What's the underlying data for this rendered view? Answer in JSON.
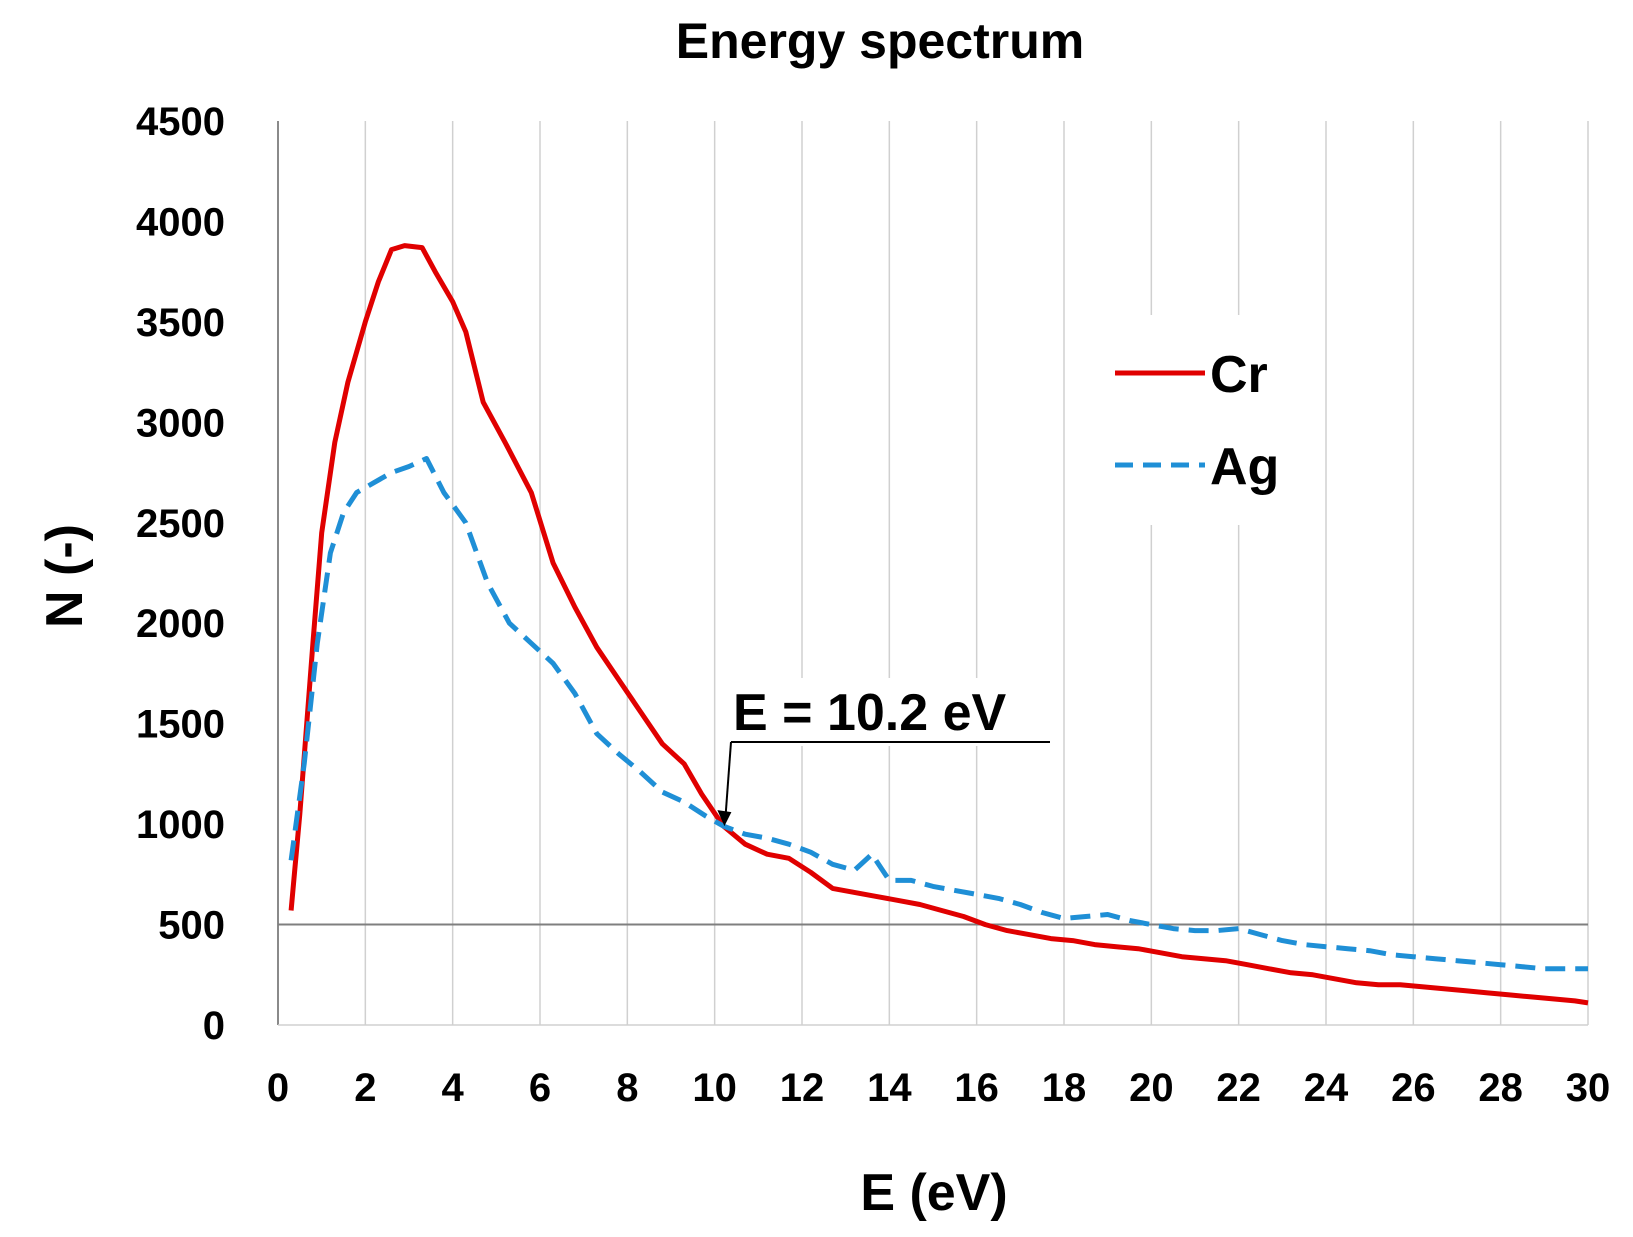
{
  "chart_data": {
    "type": "line",
    "title": "Energy spectrum",
    "xlabel": "E (eV)",
    "ylabel": "N (-)",
    "xlim": [
      0,
      30
    ],
    "ylim": [
      0,
      4500
    ],
    "x_ticks": [
      "0",
      "2",
      "4",
      "6",
      "8",
      "10",
      "12",
      "14",
      "16",
      "18",
      "20",
      "22",
      "24",
      "26",
      "28",
      "30"
    ],
    "y_ticks": [
      "0",
      "500",
      "1000",
      "1500",
      "2000",
      "2500",
      "3000",
      "3500",
      "4000",
      "4500"
    ],
    "grid": "vertical",
    "legend_position": "top-right",
    "annotation": {
      "text": "E = 10.2 eV",
      "x": 10.2,
      "y": 990
    },
    "series": [
      {
        "name": "Cr",
        "color": "#e00000",
        "style": "solid",
        "x": [
          0.3,
          0.5,
          0.8,
          1.0,
          1.3,
          1.6,
          2.0,
          2.3,
          2.6,
          2.9,
          3.3,
          3.6,
          4.0,
          4.3,
          4.7,
          5.2,
          5.8,
          6.3,
          6.8,
          7.3,
          7.8,
          8.3,
          8.8,
          9.3,
          9.7,
          10.2,
          10.7,
          11.2,
          11.7,
          12.2,
          12.7,
          13.2,
          13.7,
          14.2,
          14.7,
          15.2,
          15.7,
          16.2,
          16.7,
          17.2,
          17.7,
          18.2,
          18.7,
          19.2,
          19.7,
          20.2,
          20.7,
          21.2,
          21.7,
          22.2,
          22.7,
          23.2,
          23.7,
          24.2,
          24.7,
          25.2,
          25.7,
          26.2,
          26.7,
          27.2,
          27.7,
          28.2,
          28.7,
          29.2,
          29.7,
          30.0
        ],
        "values": [
          570,
          1050,
          1900,
          2450,
          2900,
          3200,
          3500,
          3700,
          3860,
          3880,
          3870,
          3750,
          3600,
          3450,
          3100,
          2900,
          2650,
          2300,
          2080,
          1880,
          1720,
          1560,
          1400,
          1300,
          1150,
          990,
          900,
          850,
          830,
          760,
          680,
          660,
          640,
          620,
          600,
          570,
          540,
          500,
          470,
          450,
          430,
          420,
          400,
          390,
          380,
          360,
          340,
          330,
          320,
          300,
          280,
          260,
          250,
          230,
          210,
          200,
          200,
          190,
          180,
          170,
          160,
          150,
          140,
          130,
          120,
          110
        ]
      },
      {
        "name": "Ag",
        "color": "#1f8fd6",
        "style": "dashed",
        "x": [
          0.3,
          0.6,
          0.9,
          1.2,
          1.5,
          1.8,
          2.2,
          2.6,
          3.0,
          3.4,
          3.8,
          4.3,
          4.8,
          5.3,
          5.8,
          6.3,
          6.8,
          7.3,
          7.8,
          8.3,
          8.8,
          9.3,
          9.8,
          10.2,
          10.7,
          11.2,
          11.7,
          12.2,
          12.7,
          13.2,
          13.6,
          14.0,
          14.5,
          15.0,
          15.5,
          16.0,
          16.5,
          17.0,
          17.5,
          18.0,
          18.5,
          19.0,
          19.5,
          20.0,
          20.5,
          21.0,
          21.5,
          22.0,
          22.5,
          23.0,
          23.5,
          24.0,
          24.5,
          25.0,
          25.5,
          26.0,
          26.5,
          27.0,
          27.5,
          28.0,
          28.5,
          29.0,
          29.5,
          30.0
        ],
        "values": [
          820,
          1300,
          1900,
          2350,
          2550,
          2650,
          2700,
          2750,
          2780,
          2820,
          2650,
          2500,
          2200,
          2000,
          1900,
          1800,
          1650,
          1450,
          1350,
          1260,
          1160,
          1110,
          1040,
          990,
          950,
          930,
          900,
          860,
          800,
          770,
          850,
          720,
          720,
          690,
          670,
          650,
          630,
          600,
          560,
          530,
          540,
          550,
          520,
          500,
          480,
          470,
          470,
          480,
          450,
          420,
          400,
          390,
          380,
          370,
          350,
          340,
          330,
          320,
          310,
          300,
          290,
          280,
          280,
          280
        ]
      }
    ]
  }
}
